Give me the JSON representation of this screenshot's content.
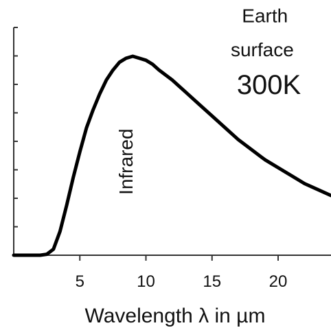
{
  "chart_data": {
    "type": "line",
    "title": "",
    "xlabel": "Wavelength λ in µm",
    "ylabel": "",
    "xlim": [
      0,
      24
    ],
    "ylim": [
      0,
      10
    ],
    "x_ticks": [
      5,
      10,
      15,
      20
    ],
    "y_tick_count": 8,
    "grid": false,
    "series": [
      {
        "x": [
          0,
          1,
          2,
          2.5,
          3,
          3.5,
          4,
          4.5,
          5,
          5.5,
          6,
          6.5,
          7,
          7.5,
          8,
          8.5,
          9,
          9.5,
          10,
          10.5,
          11,
          12,
          13,
          14,
          15,
          16,
          17,
          18,
          19,
          20,
          21,
          22,
          23,
          24
        ],
        "y": [
          0,
          0,
          0,
          0.05,
          0.3,
          1.2,
          2.5,
          3.9,
          5.2,
          6.4,
          7.3,
          8.1,
          8.8,
          9.3,
          9.7,
          9.9,
          10.0,
          9.9,
          9.8,
          9.6,
          9.3,
          8.8,
          8.2,
          7.6,
          7.0,
          6.4,
          5.8,
          5.3,
          4.8,
          4.4,
          4.0,
          3.6,
          3.3,
          3.0
        ]
      }
    ],
    "annotations": [
      {
        "text": "Infrared",
        "x": 9,
        "y": 4.7,
        "rotation": -90,
        "size": 28
      },
      {
        "text": "Earth",
        "x": 19,
        "y": 11.7,
        "rotation": 0,
        "size": 28
      },
      {
        "text": "surface",
        "x": 18.8,
        "y": 10.0,
        "rotation": 0,
        "size": 28
      },
      {
        "text": "300K",
        "x": 19.3,
        "y": 8.1,
        "rotation": 0,
        "size": 40
      }
    ]
  }
}
